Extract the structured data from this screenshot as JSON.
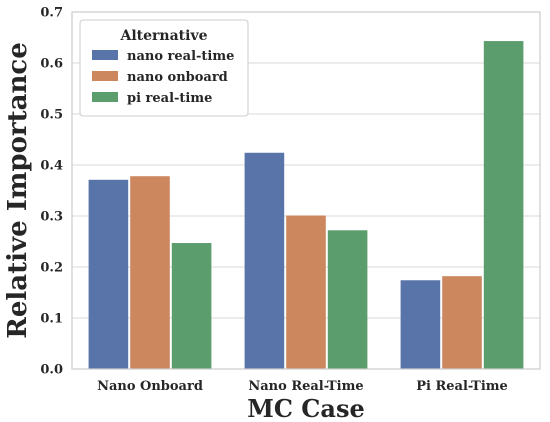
{
  "chart_data": {
    "type": "bar",
    "title": "",
    "xlabel": "MC Case",
    "ylabel": "Relative Importance",
    "categories": [
      "Nano Onboard",
      "Nano Real-Time",
      "Pi Real-Time"
    ],
    "series": [
      {
        "name": "nano real-time",
        "color": "#5874a8",
        "values": [
          0.371,
          0.424,
          0.174
        ]
      },
      {
        "name": "nano onboard",
        "color": "#cc875e",
        "values": [
          0.378,
          0.301,
          0.182
        ]
      },
      {
        "name": "pi real-time",
        "color": "#5b9d6c",
        "values": [
          0.247,
          0.272,
          0.643
        ]
      }
    ],
    "ylim": [
      0,
      0.7
    ],
    "yticks": [
      "0.0",
      "0.1",
      "0.2",
      "0.3",
      "0.4",
      "0.5",
      "0.6",
      "0.7"
    ],
    "grid": "y",
    "legend": {
      "title": "Alternative",
      "position": "top-left"
    }
  }
}
